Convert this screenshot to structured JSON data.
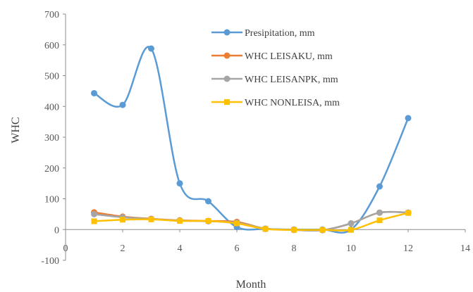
{
  "chart_data": {
    "type": "line",
    "xlabel": "Month",
    "ylabel": "WHC",
    "xlim": [
      0,
      14
    ],
    "ylim": [
      -100,
      700
    ],
    "x_ticks": [
      0,
      2,
      4,
      6,
      8,
      10,
      12,
      14
    ],
    "y_ticks": [
      -100,
      0,
      100,
      200,
      300,
      400,
      500,
      600,
      700
    ],
    "grid": false,
    "smooth": true,
    "legend_position": "top-right",
    "x": [
      1,
      2,
      3,
      4,
      5,
      6,
      7,
      8,
      9,
      10,
      11,
      12
    ],
    "series": [
      {
        "name": "Presipitation, mm",
        "color": "#5b9bd5",
        "values": [
          443,
          405,
          588,
          150,
          92,
          8,
          2,
          0,
          0,
          0,
          140,
          362
        ]
      },
      {
        "name": "WHC LEISAKU, mm",
        "color": "#ed7d31",
        "values": [
          56,
          42,
          35,
          30,
          28,
          25,
          3,
          -1,
          -2,
          20,
          55,
          55
        ]
      },
      {
        "name": "WHC LEISANPK, mm",
        "color": "#a5a5a5",
        "values": [
          50,
          40,
          34,
          29,
          27,
          22,
          3,
          -1,
          -2,
          20,
          55,
          55
        ]
      },
      {
        "name": "WHC NONLEISA, mm",
        "color": "#ffc000",
        "values": [
          27,
          32,
          33,
          28,
          28,
          20,
          2,
          -1,
          -1,
          -1,
          30,
          54
        ]
      }
    ]
  }
}
